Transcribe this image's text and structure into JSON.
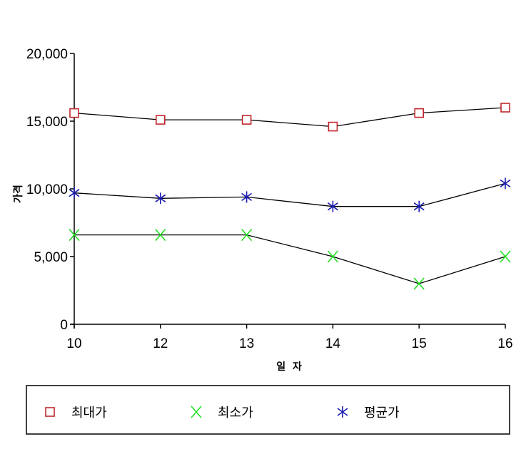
{
  "chart_data": {
    "type": "line",
    "categories": [
      "10",
      "12",
      "13",
      "14",
      "15",
      "16"
    ],
    "xlabel": "일  자",
    "ylabel": "가격",
    "ylim": [
      0,
      20000
    ],
    "yticks": [
      0,
      5000,
      10000,
      15000,
      20000
    ],
    "ytick_labels": [
      "0",
      "5,000",
      "10,000",
      "15,000",
      "20,000"
    ],
    "grid": false,
    "legend_position": "bottom",
    "series": [
      {
        "name": "최대가",
        "marker": "square",
        "color": "#c0272d",
        "values": [
          15600,
          15100,
          15100,
          14600,
          15600,
          16000
        ]
      },
      {
        "name": "최소가",
        "marker": "x",
        "color": "#22dd22",
        "values": [
          6600,
          6600,
          6600,
          5000,
          3000,
          5000
        ]
      },
      {
        "name": "평균가",
        "marker": "asterisk",
        "color": "#1a1ab0",
        "values": [
          9700,
          9300,
          9400,
          8700,
          8700,
          10400
        ]
      }
    ]
  }
}
